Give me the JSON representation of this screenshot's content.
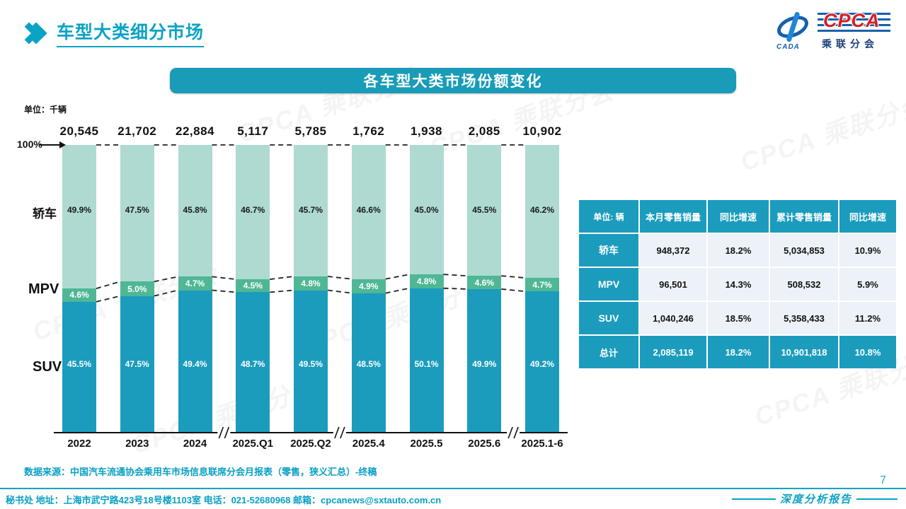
{
  "page": {
    "title": "车型大类细分市场",
    "page_number": "7",
    "report_label": "深度分析报告",
    "source_note": "数据来源：中国汽车流通协会乘用车市场信息联席分会月报表（零售，狭义汇总）-终稿",
    "footer_contact": "秘书处  地址：上海市武宁路423号18号楼1103室  电话：021-52680968   邮箱：cpcanews@sxtauto.com.cn",
    "watermark_text": "CPCA 乘联分会"
  },
  "logo": {
    "cpca": "CPCA",
    "subtitle": "乘联分会",
    "cada": "CADA"
  },
  "chart_data": {
    "type": "bar",
    "stacked": true,
    "title": "各车型大类市场份额变化",
    "unit_label": "单位：千辆",
    "axis_top_label": "100%",
    "categories": [
      "2022",
      "2023",
      "2024",
      "2025.Q1",
      "2025.Q2",
      "2025.4",
      "2025.5",
      "2025.6",
      "2025.1-6"
    ],
    "totals": [
      "20,545",
      "21,702",
      "22,884",
      "5,117",
      "5,785",
      "1,762",
      "1,938",
      "2,085",
      "10,902"
    ],
    "series": [
      {
        "name": "轿车",
        "color": "#aedad2",
        "values": [
          49.9,
          47.5,
          45.8,
          46.7,
          45.7,
          46.6,
          45.0,
          45.5,
          46.2
        ]
      },
      {
        "name": "MPV",
        "color": "#4fb795",
        "values": [
          4.6,
          5.0,
          4.7,
          4.5,
          4.8,
          4.9,
          4.8,
          4.6,
          4.7
        ]
      },
      {
        "name": "SUV",
        "color": "#1b9cbd",
        "values": [
          45.5,
          47.5,
          49.4,
          48.7,
          49.5,
          48.5,
          50.1,
          49.9,
          49.2
        ]
      }
    ],
    "axis_breaks_after": [
      2,
      4,
      7
    ],
    "ylim": [
      0,
      100
    ],
    "legend_position": "left",
    "grid": false
  },
  "table": {
    "unit_header": "单位: 辆",
    "columns": [
      "本月零售销量",
      "同比增速",
      "累计零售销量",
      "同比增速"
    ],
    "rows": [
      {
        "label": "轿车",
        "values": [
          "948,372",
          "18.2%",
          "5,034,853",
          "10.9%"
        ],
        "highlight": false
      },
      {
        "label": "MPV",
        "values": [
          "96,501",
          "14.3%",
          "508,532",
          "5.9%"
        ],
        "highlight": false
      },
      {
        "label": "SUV",
        "values": [
          "1,040,246",
          "18.5%",
          "5,358,433",
          "11.2%"
        ],
        "highlight": false
      },
      {
        "label": "总计",
        "values": [
          "2,085,119",
          "18.2%",
          "10,901,818",
          "10.8%"
        ],
        "highlight": true
      }
    ]
  },
  "colors": {
    "accent_teal": "#0ba3c4",
    "bar_suv": "#1b9cbd",
    "bar_mpv": "#4fb795",
    "bar_sedan": "#aedad2",
    "table_header": "#1b9cbd",
    "table_cell_bg": "#edf1f8",
    "title_bar_bg": "#189cb8",
    "logo_red": "#d41f26",
    "logo_blue": "#1560ac"
  }
}
